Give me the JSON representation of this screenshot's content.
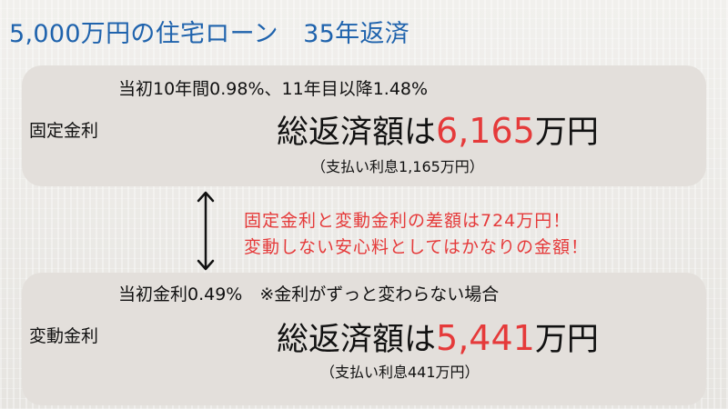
{
  "title": "5,000万円の住宅ローン　35年返済",
  "fixed": {
    "condition": "当初10年間0.98%、11年目以降1.48%",
    "label": "固定金利",
    "total_prefix": "総返済額は",
    "total_amount": "6,165",
    "total_unit": "万円",
    "interest": "（支払い利息1,165万円）"
  },
  "note": {
    "line1": "固定金利と変動金利の差額は724万円！",
    "line2": "変動しない安心料としてはかなりの金額！"
  },
  "variable": {
    "condition": "当初金利0.49%　※金利がずっと変わらない場合",
    "label": "変動金利",
    "total_prefix": "総返済額は",
    "total_amount": "5,441",
    "total_unit": "万円",
    "interest": "（支払い利息441万円）"
  },
  "colors": {
    "title": "#1f63ad",
    "highlight": "#e53a3a",
    "panel": "#e3dfdb",
    "text": "#111111"
  },
  "icons": {
    "arrow": "double-headed-vertical-arrow-icon"
  }
}
